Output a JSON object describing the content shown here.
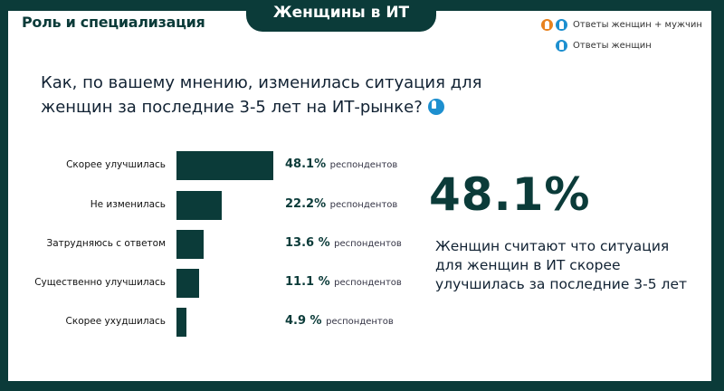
{
  "header": {
    "tab_title": "Женщины в ИТ",
    "section_title": "Роль и специализация"
  },
  "legend": {
    "items": [
      {
        "label": "Ответы женщин + мужчин",
        "icons": [
          "woman-icon",
          "man-icon"
        ]
      },
      {
        "label": "Ответы женщин",
        "icons": [
          "woman-icon"
        ]
      }
    ],
    "colors": {
      "orange": "#e8821e",
      "blue": "#1d8fcf"
    }
  },
  "question": {
    "line1": "Как, по вашему мнению, изменилась ситуация для",
    "line2": "женщин за последние 3-5 лет на ИТ-рынке?"
  },
  "chart_data": {
    "type": "bar",
    "orientation": "horizontal",
    "categories": [
      "Скорее улучшилась",
      "Не изменилась",
      "Затрудняюсь с ответом",
      "Существенно улучшилась",
      "Скорее ухудшилась"
    ],
    "values": [
      48.1,
      22.2,
      13.6,
      11.1,
      4.9
    ],
    "value_labels": [
      "48.1%",
      "22.2%",
      "13.6 %",
      "11.1 %",
      "4.9 %"
    ],
    "unit_label": "респондентов",
    "bar_color": "#0b3b39"
  },
  "highlight": {
    "value": "48.1%",
    "text": "Женщин считают что ситуация для женщин в ИТ скорее улучшилась за последние 3-5 лет"
  }
}
